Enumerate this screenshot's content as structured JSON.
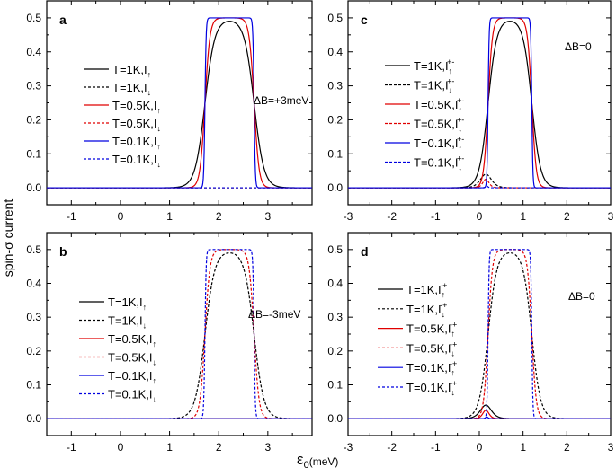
{
  "chart_data": [
    {
      "panel": "a",
      "type": "line",
      "annotation": "ΔB=+3meV",
      "xlim": [
        -1.5,
        3.9
      ],
      "ylim": [
        -0.05,
        0.55
      ],
      "xticks": [
        -1,
        0,
        1,
        2,
        3
      ],
      "yticks": [
        0.0,
        0.1,
        0.2,
        0.3,
        0.4,
        0.5
      ],
      "series": [
        {
          "name": "T=1K,I↑",
          "T": "1K",
          "spin": "↑",
          "sup": "",
          "color": "#000000",
          "dash": false,
          "shape": "window",
          "window": [
            1.72,
            2.72
          ],
          "peak": 0.49
        },
        {
          "name": "T=1K,I↓",
          "T": "1K",
          "spin": "↓",
          "sup": "",
          "color": "#000000",
          "dash": true,
          "shape": "zero",
          "peak": 0
        },
        {
          "name": "T=0.5K,I↑",
          "T": "0.5K",
          "spin": "↑",
          "sup": "",
          "color": "#e00000",
          "dash": false,
          "shape": "window",
          "window": [
            1.72,
            2.72
          ],
          "peak": 0.5
        },
        {
          "name": "T=0.5K,I↓",
          "T": "0.5K",
          "spin": "↓",
          "sup": "",
          "color": "#e00000",
          "dash": true,
          "shape": "zero",
          "peak": 0
        },
        {
          "name": "T=0.1K,I↑",
          "T": "0.1K",
          "spin": "↑",
          "sup": "",
          "color": "#0000e0",
          "dash": false,
          "shape": "window",
          "window": [
            1.72,
            2.72
          ],
          "peak": 0.5
        },
        {
          "name": "T=0.1K,I↓",
          "T": "0.1K",
          "spin": "↓",
          "sup": "",
          "color": "#0000e0",
          "dash": true,
          "shape": "zero",
          "peak": 0
        }
      ]
    },
    {
      "panel": "c",
      "type": "line",
      "annotation": "ΔB=0",
      "xlim": [
        -3,
        3
      ],
      "ylim": [
        -0.05,
        0.55
      ],
      "xticks": [
        -3,
        -2,
        -1,
        0,
        1,
        2,
        3
      ],
      "yticks": [
        0.0,
        0.1,
        0.2,
        0.3,
        0.4,
        0.5
      ],
      "series": [
        {
          "name": "T=1K,I↑+-",
          "T": "1K",
          "spin": "↑",
          "sup": "+-",
          "color": "#000000",
          "dash": false,
          "shape": "window",
          "window": [
            0.2,
            1.2
          ],
          "peak": 0.49
        },
        {
          "name": "T=1K,I↓+-",
          "T": "1K",
          "spin": "↓",
          "sup": "+-",
          "color": "#000000",
          "dash": true,
          "shape": "bump",
          "center": 0.15,
          "peak": 0.04
        },
        {
          "name": "T=0.5K,I↑+-",
          "T": "0.5K",
          "spin": "↑",
          "sup": "+-",
          "color": "#e00000",
          "dash": false,
          "shape": "window",
          "window": [
            0.2,
            1.2
          ],
          "peak": 0.5
        },
        {
          "name": "T=0.5K,I↓+-",
          "T": "0.5K",
          "spin": "↓",
          "sup": "+-",
          "color": "#e00000",
          "dash": true,
          "shape": "bump",
          "center": 0.15,
          "peak": 0.025
        },
        {
          "name": "T=0.1K,I↑+-",
          "T": "0.1K",
          "spin": "↑",
          "sup": "+-",
          "color": "#0000e0",
          "dash": false,
          "shape": "window",
          "window": [
            0.2,
            1.2
          ],
          "peak": 0.5
        },
        {
          "name": "T=0.1K,I↓+-",
          "T": "0.1K",
          "spin": "↓",
          "sup": "+-",
          "color": "#0000e0",
          "dash": true,
          "shape": "bump",
          "center": 0.17,
          "peak": 0.005
        }
      ]
    },
    {
      "panel": "b",
      "type": "line",
      "annotation": "ΔB=-3meV",
      "xlim": [
        -1.5,
        3.9
      ],
      "ylim": [
        -0.05,
        0.55
      ],
      "xticks": [
        -1,
        0,
        1,
        2,
        3
      ],
      "yticks": [
        0.0,
        0.1,
        0.2,
        0.3,
        0.4,
        0.5
      ],
      "series": [
        {
          "name": "T=1K,I↑",
          "T": "1K",
          "spin": "↑",
          "sup": "",
          "color": "#000000",
          "dash": false,
          "shape": "zero",
          "peak": 0
        },
        {
          "name": "T=1K,I↓",
          "T": "1K",
          "spin": "↓",
          "sup": "",
          "color": "#000000",
          "dash": true,
          "shape": "window",
          "window": [
            1.72,
            2.72
          ],
          "peak": 0.49
        },
        {
          "name": "T=0.5K,I↑",
          "T": "0.5K",
          "spin": "↑",
          "sup": "",
          "color": "#e00000",
          "dash": false,
          "shape": "zero",
          "peak": 0
        },
        {
          "name": "T=0.5K,I↓",
          "T": "0.5K",
          "spin": "↓",
          "sup": "",
          "color": "#e00000",
          "dash": true,
          "shape": "window",
          "window": [
            1.72,
            2.72
          ],
          "peak": 0.5
        },
        {
          "name": "T=0.1K,I↑",
          "T": "0.1K",
          "spin": "↑",
          "sup": "",
          "color": "#0000e0",
          "dash": false,
          "shape": "zero",
          "peak": 0
        },
        {
          "name": "T=0.1K,I↓",
          "T": "0.1K",
          "spin": "↓",
          "sup": "",
          "color": "#0000e0",
          "dash": true,
          "shape": "window",
          "window": [
            1.72,
            2.72
          ],
          "peak": 0.5
        }
      ]
    },
    {
      "panel": "d",
      "type": "line",
      "annotation": "ΔB=0",
      "xlim": [
        -3,
        3
      ],
      "ylim": [
        -0.05,
        0.55
      ],
      "xticks": [
        -3,
        -2,
        -1,
        0,
        1,
        2,
        3
      ],
      "yticks": [
        0.0,
        0.1,
        0.2,
        0.3,
        0.4,
        0.5
      ],
      "series": [
        {
          "name": "T=1K,I↑-+",
          "T": "1K",
          "spin": "↑",
          "sup": "-+",
          "color": "#000000",
          "dash": false,
          "shape": "bump",
          "center": 0.15,
          "peak": 0.04
        },
        {
          "name": "T=1K,I↓-+",
          "T": "1K",
          "spin": "↓",
          "sup": "-+",
          "color": "#000000",
          "dash": true,
          "shape": "window",
          "window": [
            0.2,
            1.2
          ],
          "peak": 0.49
        },
        {
          "name": "T=0.5K,I↑-+",
          "T": "0.5K",
          "spin": "↑",
          "sup": "-+",
          "color": "#e00000",
          "dash": false,
          "shape": "bump",
          "center": 0.15,
          "peak": 0.025
        },
        {
          "name": "T=0.5K,I↓-+",
          "T": "0.5K",
          "spin": "↓",
          "sup": "-+",
          "color": "#e00000",
          "dash": true,
          "shape": "window",
          "window": [
            0.2,
            1.2
          ],
          "peak": 0.5
        },
        {
          "name": "T=0.1K,I↑-+",
          "T": "0.1K",
          "spin": "↑",
          "sup": "-+",
          "color": "#0000e0",
          "dash": false,
          "shape": "bump",
          "center": 0.17,
          "peak": 0.005
        },
        {
          "name": "T=0.1K,I↓-+",
          "T": "0.1K",
          "spin": "↓",
          "sup": "-+",
          "color": "#0000e0",
          "dash": true,
          "shape": "window",
          "window": [
            0.2,
            1.2
          ],
          "peak": 0.5
        }
      ]
    }
  ],
  "ylabel": "spin-σ current",
  "xlabel_symbol": "ε",
  "xlabel_sub": "0",
  "xlabel_unit": "(meV)"
}
